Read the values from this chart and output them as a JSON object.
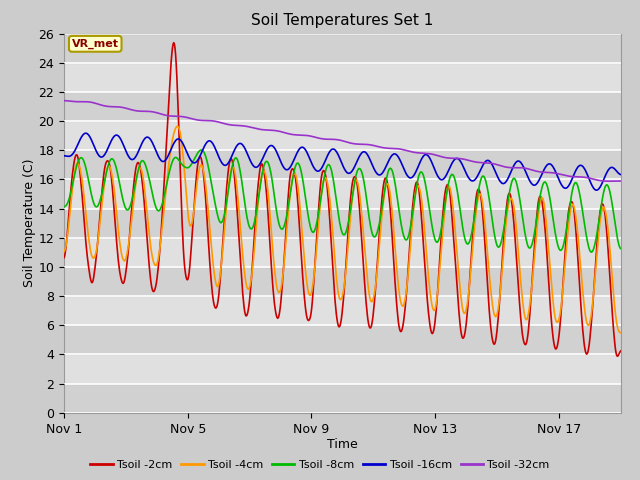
{
  "title": "Soil Temperatures Set 1",
  "xlabel": "Time",
  "ylabel": "Soil Temperature (C)",
  "ylim": [
    0,
    26
  ],
  "yticks": [
    0,
    2,
    4,
    6,
    8,
    10,
    12,
    14,
    16,
    18,
    20,
    22,
    24,
    26
  ],
  "xtick_labels": [
    "Nov 1",
    "Nov 5",
    "Nov 9",
    "Nov 13",
    "Nov 17"
  ],
  "xtick_positions": [
    0,
    4,
    8,
    12,
    16
  ],
  "series_colors": [
    "#cc0000",
    "#ff9900",
    "#00bb00",
    "#0000cc",
    "#9933cc"
  ],
  "series_labels": [
    "Tsoil -2cm",
    "Tsoil -4cm",
    "Tsoil -8cm",
    "Tsoil -16cm",
    "Tsoil -32cm"
  ],
  "annotation_text": "VR_met",
  "n_days": 18,
  "pts_per_day": 48,
  "fig_width": 6.4,
  "fig_height": 4.8,
  "dpi": 100
}
